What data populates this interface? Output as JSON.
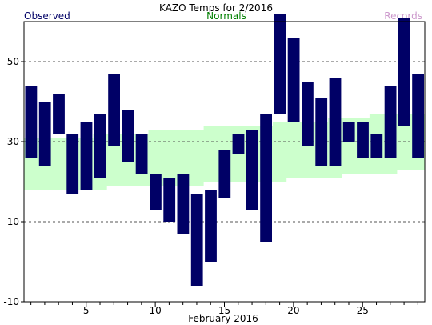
{
  "chart_data": {
    "type": "bar",
    "title": "KAZO Temps for 2/2016",
    "xlabel": "February 2016",
    "ylabel": "",
    "ylim": [
      -10,
      60
    ],
    "xlim": [
      0.5,
      29.5
    ],
    "grid": "dashed horizontal at 10, 30, 50",
    "legend_placement": "top",
    "legend": {
      "observed": "Observed",
      "normals": "Normals",
      "records": "Records"
    },
    "colors": {
      "observed": "#000066",
      "normals": "#ccffcc",
      "records": "#cc99cc",
      "normals_label": "#008000",
      "grid": "#555555"
    },
    "yticks": [
      -10,
      10,
      30,
      50
    ],
    "xticks": [
      5,
      10,
      15,
      20,
      25
    ],
    "days": [
      1,
      2,
      3,
      4,
      5,
      6,
      7,
      8,
      9,
      10,
      11,
      12,
      13,
      14,
      15,
      16,
      17,
      18,
      19,
      20,
      21,
      22,
      23,
      24,
      25,
      26,
      27,
      28,
      29
    ],
    "observed_high": [
      44,
      40,
      42,
      32,
      35,
      37,
      47,
      38,
      32,
      22,
      21,
      22,
      17,
      18,
      28,
      32,
      33,
      37,
      62,
      56,
      45,
      41,
      46,
      35,
      35,
      32,
      44,
      61,
      47
    ],
    "observed_low": [
      26,
      24,
      32,
      17,
      18,
      21,
      29,
      25,
      22,
      13,
      10,
      7,
      -6,
      0,
      16,
      27,
      13,
      5,
      37,
      35,
      29,
      24,
      24,
      30,
      26,
      26,
      26,
      34,
      26
    ],
    "normal_high": [
      31,
      31,
      31,
      31,
      31,
      32,
      32,
      32,
      32,
      33,
      33,
      33,
      33,
      34,
      34,
      34,
      34,
      34,
      35,
      35,
      35,
      35,
      36,
      36,
      36,
      37,
      37,
      37,
      37
    ],
    "normal_low": [
      18,
      18,
      18,
      18,
      18,
      18,
      19,
      19,
      19,
      19,
      19,
      19,
      19,
      20,
      20,
      20,
      20,
      20,
      20,
      21,
      21,
      21,
      21,
      22,
      22,
      22,
      22,
      23,
      23
    ]
  }
}
